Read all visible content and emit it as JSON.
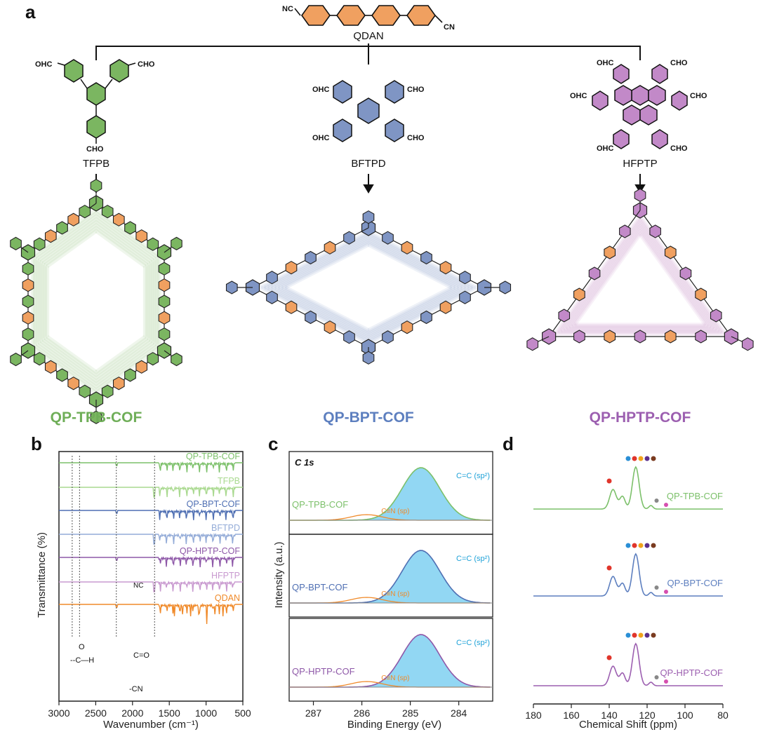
{
  "panel_a": {
    "label": "a",
    "linker": "QDAN",
    "aldehydes": [
      {
        "name": "TFPB",
        "color": "#7bb661"
      },
      {
        "name": "BFTPD",
        "color": "#7f95c4"
      },
      {
        "name": "HFPTP",
        "color": "#c289c8"
      }
    ],
    "cofs": [
      {
        "name": "QP-TPB-COF",
        "color": "#6fae58"
      },
      {
        "name": "QP-BPT-COF",
        "color": "#5d7fbf"
      },
      {
        "name": "QP-HPTP-COF",
        "color": "#9c5fb0"
      }
    ],
    "linker_color": "#f0a060",
    "groups": {
      "cho": "CHO",
      "ohc": "OHC",
      "nc": "NC",
      "cn": "CN",
      "repeat": "4"
    }
  },
  "panel_b": {
    "label": "b",
    "ylabel": "Transmittance (%)",
    "xlabel": "Wavenumber (cm⁻¹)",
    "xticks": [
      "3000",
      "2500",
      "2000",
      "1500",
      "1000",
      "500"
    ],
    "traces": [
      {
        "name": "QP-TPB-COF",
        "color": "#7cc06a"
      },
      {
        "name": "TFPB",
        "color": "#a9d98f"
      },
      {
        "name": "QP-BPT-COF",
        "color": "#4f6fb3"
      },
      {
        "name": "BFTPD",
        "color": "#94acd8"
      },
      {
        "name": "QP-HPTP-COF",
        "color": "#8e58a8"
      },
      {
        "name": "HFPTP",
        "color": "#c99ad0"
      },
      {
        "name": "QDAN",
        "color": "#f08a2a"
      }
    ],
    "annotations": {
      "aldehyde_h": "--C—H",
      "carbonyl": "C=O",
      "nitrile": "-CN",
      "cn": "NC",
      "o": "O"
    }
  },
  "panel_c": {
    "label": "c",
    "title": "C 1s",
    "ylabel": "Intensity (a.u.)",
    "xlabel": "Binding Energy (eV)",
    "xticks": [
      "287",
      "286",
      "285",
      "284"
    ],
    "subplots": [
      {
        "name": "QP-TPB-COF",
        "color": "#7cc06a",
        "peak1": "C=C (sp²)",
        "peak2": "C≡N (sp)"
      },
      {
        "name": "QP-BPT-COF",
        "color": "#4f6fb3",
        "peak1": "C=C (sp²)",
        "peak2": "C≡N (sp)"
      },
      {
        "name": "QP-HPTP-COF",
        "color": "#8e58a8",
        "peak1": "C=C (sp²)",
        "peak2": "C≡N (sp)"
      }
    ],
    "fill_color": "#39b6ea",
    "minor_color": "#f08a2a"
  },
  "panel_d": {
    "label": "d",
    "xlabel": "Chemical Shift (ppm)",
    "xticks": [
      "180",
      "160",
      "140",
      "120",
      "100",
      "80"
    ],
    "spectra": [
      {
        "name": "QP-TPB-COF",
        "color": "#7cc06a"
      },
      {
        "name": "QP-BPT-COF",
        "color": "#5d7fbf"
      },
      {
        "name": "QP-HPTP-COF",
        "color": "#9c5fb0"
      }
    ],
    "dot_colors": [
      "#2a8fd6",
      "#e0352b",
      "#f1a31c",
      "#5b2f8c",
      "#7a3b20",
      "#f07a30",
      "#1fa2d8"
    ]
  }
}
